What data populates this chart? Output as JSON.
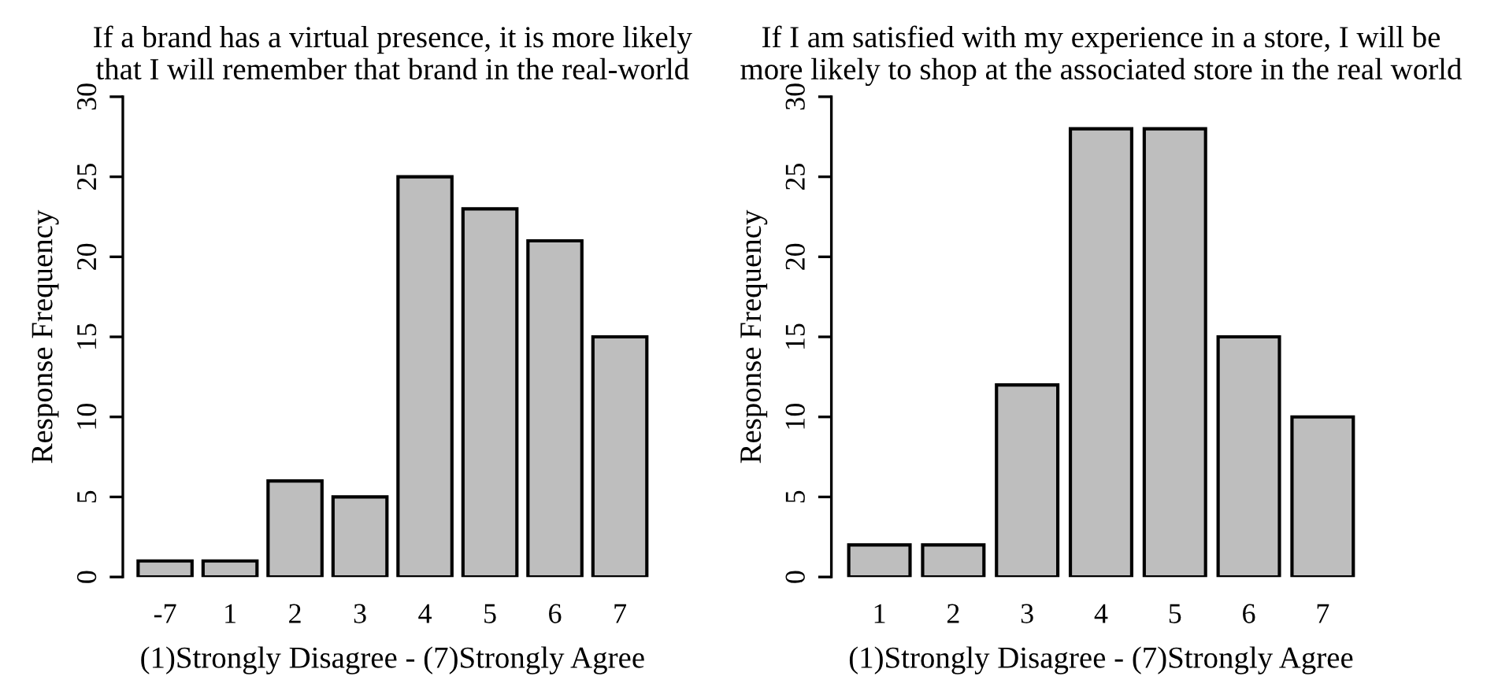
{
  "chart_data": [
    {
      "type": "bar",
      "title": "If a brand has a virtual presence, it is more likely\nthat I will remember that brand in the real-world",
      "xlabel": "(1)Strongly Disagree - (7)Strongly Agree",
      "ylabel": "Response Frequency",
      "categories": [
        "-7",
        "1",
        "2",
        "3",
        "4",
        "5",
        "6",
        "7"
      ],
      "values": [
        1,
        1,
        6,
        5,
        25,
        23,
        21,
        15
      ],
      "color": "#bebebe",
      "ylim": [
        0,
        30
      ],
      "yticks": [
        0,
        5,
        10,
        15,
        20,
        25,
        30
      ],
      "grid": false,
      "legend": false
    },
    {
      "type": "bar",
      "title": "If I am satisfied with my experience in a store, I will be\nmore likely to shop at the associated store in the real world",
      "xlabel": "(1)Strongly Disagree - (7)Strongly Agree",
      "ylabel": "Response Frequency",
      "categories": [
        "1",
        "2",
        "3",
        "4",
        "5",
        "6",
        "7"
      ],
      "values": [
        2,
        2,
        12,
        28,
        28,
        15,
        10
      ],
      "color": "#bebebe",
      "ylim": [
        0,
        30
      ],
      "yticks": [
        0,
        5,
        10,
        15,
        20,
        25,
        30
      ],
      "grid": false,
      "legend": false
    }
  ]
}
